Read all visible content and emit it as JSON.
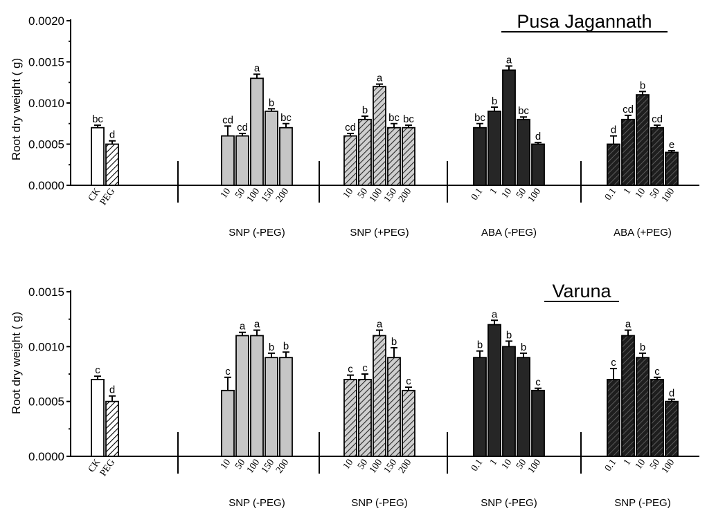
{
  "chart_data": [
    {
      "type": "bar",
      "title": "Pusa Jagannath",
      "ylabel": "Root dry weight  ( g)",
      "ylim": [
        0,
        0.002
      ],
      "yticks": [
        "0.0000",
        "0.0005",
        "0.0010",
        "0.0015",
        "0.0020"
      ],
      "groups": [
        {
          "name": "",
          "style": "mixed",
          "labels": [
            "CK",
            "PEG"
          ],
          "values": [
            0.0007,
            0.0005
          ],
          "errors": [
            3e-05,
            4e-05
          ],
          "sig": [
            "bc",
            "d"
          ]
        },
        {
          "name": "SNP (-PEG)",
          "style": "gray",
          "labels": [
            "10",
            "50",
            "100",
            "150",
            "200"
          ],
          "values": [
            0.0006,
            0.0006,
            0.0013,
            0.0009,
            0.0007
          ],
          "errors": [
            0.00012,
            3e-05,
            5e-05,
            3e-05,
            5e-05
          ],
          "sig": [
            "cd",
            "cd",
            "a",
            "b",
            "bc"
          ]
        },
        {
          "name": "SNP (+PEG)",
          "style": "gray-hatch",
          "labels": [
            "10",
            "50",
            "100",
            "150",
            "200"
          ],
          "values": [
            0.0006,
            0.0008,
            0.0012,
            0.0007,
            0.0007
          ],
          "errors": [
            3e-05,
            4e-05,
            3e-05,
            5e-05,
            3e-05
          ],
          "sig": [
            "cd",
            "b",
            "a",
            "bc",
            "bc"
          ]
        },
        {
          "name": "ABA (-PEG)",
          "style": "dark",
          "labels": [
            "0.1",
            "1",
            "10",
            "50",
            "100"
          ],
          "values": [
            0.0007,
            0.0009,
            0.0014,
            0.0008,
            0.0005
          ],
          "errors": [
            5e-05,
            5e-05,
            5e-05,
            3e-05,
            2e-05
          ],
          "sig": [
            "bc",
            "b",
            "a",
            "bc",
            "d"
          ]
        },
        {
          "name": "ABA (+PEG)",
          "style": "dark-hatch",
          "labels": [
            "0.1",
            "1",
            "10",
            "50",
            "100"
          ],
          "values": [
            0.0005,
            0.0008,
            0.0011,
            0.0007,
            0.0004
          ],
          "errors": [
            0.0001,
            5e-05,
            4e-05,
            3e-05,
            2e-05
          ],
          "sig": [
            "d",
            "cd",
            "b",
            "cd",
            "e"
          ]
        }
      ]
    },
    {
      "type": "bar",
      "title": "Varuna",
      "ylabel": "Root dry weight  ( g)",
      "ylim": [
        0,
        0.0015
      ],
      "yticks": [
        "0.0000",
        "0.0005",
        "0.0010",
        "0.0015"
      ],
      "groups": [
        {
          "name": "",
          "style": "mixed",
          "labels": [
            "CK",
            "PEG"
          ],
          "values": [
            0.0007,
            0.0005
          ],
          "errors": [
            3e-05,
            5e-05
          ],
          "sig": [
            "c",
            "d"
          ]
        },
        {
          "name": "SNP (-PEG)",
          "style": "gray",
          "labels": [
            "10",
            "50",
            "100",
            "150",
            "200"
          ],
          "values": [
            0.0006,
            0.0011,
            0.0011,
            0.0009,
            0.0009
          ],
          "errors": [
            0.00012,
            3e-05,
            5e-05,
            4e-05,
            5e-05
          ],
          "sig": [
            "c",
            "a",
            "a",
            "b",
            "b"
          ]
        },
        {
          "name": "SNP (-PEG)",
          "style": "gray-hatch",
          "labels": [
            "10",
            "50",
            "100",
            "150",
            "200"
          ],
          "values": [
            0.0007,
            0.0007,
            0.0011,
            0.0009,
            0.0006
          ],
          "errors": [
            4e-05,
            5e-05,
            5e-05,
            9e-05,
            3e-05
          ],
          "sig": [
            "c",
            "c",
            "a",
            "b",
            "c"
          ]
        },
        {
          "name": "SNP (-PEG)",
          "style": "dark",
          "labels": [
            "0.1",
            "1",
            "10",
            "50",
            "100"
          ],
          "values": [
            0.0009,
            0.0012,
            0.001,
            0.0009,
            0.0006
          ],
          "errors": [
            6e-05,
            4e-05,
            5e-05,
            4e-05,
            2e-05
          ],
          "sig": [
            "b",
            "a",
            "b",
            "b",
            "c"
          ]
        },
        {
          "name": "SNP (-PEG)",
          "style": "dark-hatch",
          "labels": [
            "0.1",
            "1",
            "10",
            "50",
            "100"
          ],
          "values": [
            0.0007,
            0.0011,
            0.0009,
            0.0007,
            0.0005
          ],
          "errors": [
            0.0001,
            5e-05,
            4e-05,
            2e-05,
            2e-05
          ],
          "sig": [
            "c",
            "a",
            "b",
            "c",
            "d"
          ]
        }
      ]
    }
  ]
}
